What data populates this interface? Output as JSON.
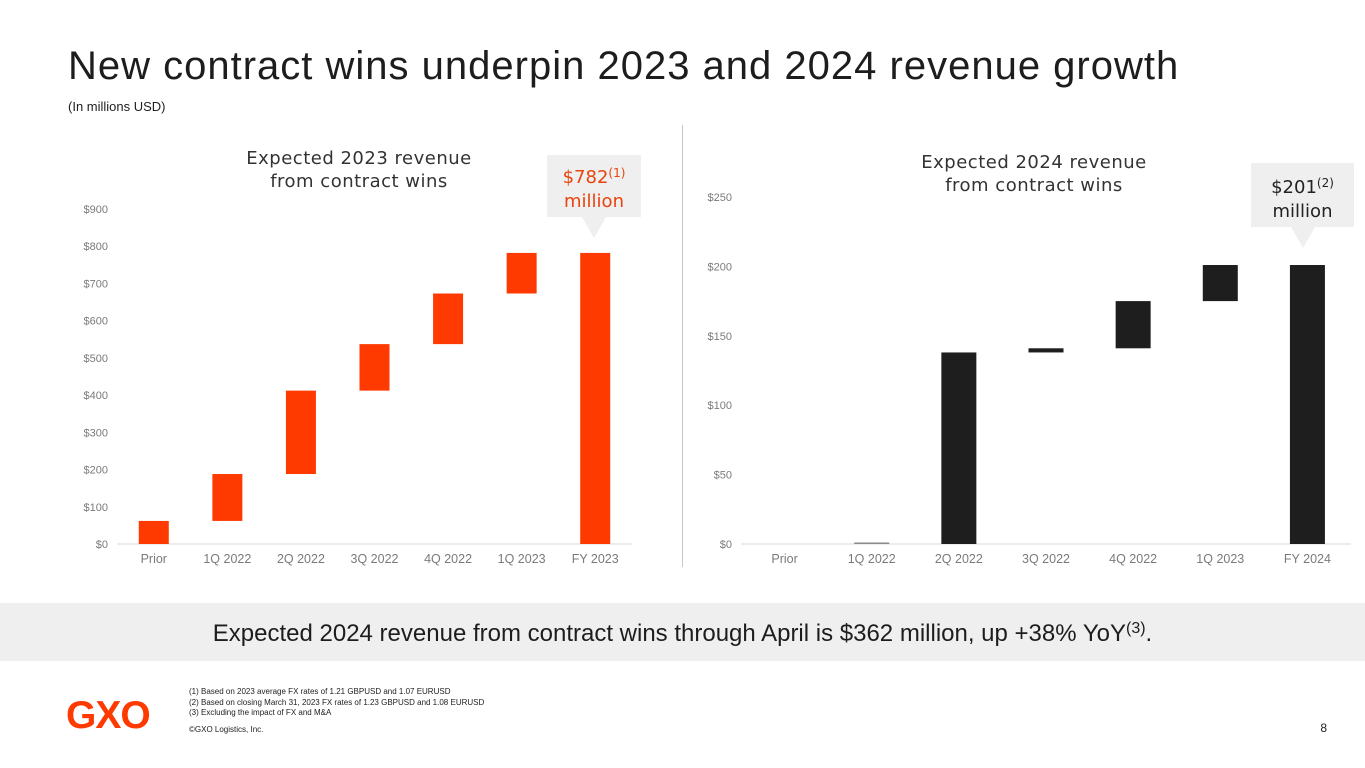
{
  "title": "New contract wins underpin 2023 and 2024 revenue growth",
  "subtitle": "(In millions USD)",
  "colors": {
    "accent": "#ff3a00",
    "dark": "#1e1e1e",
    "axis_text": "#7a7a7a",
    "callout_bg": "#efefef"
  },
  "chart_data": [
    {
      "type": "bar",
      "subtype": "waterfall",
      "title": "Expected 2023 revenue from contract wins",
      "categories": [
        "Prior",
        "1Q 2022",
        "2Q 2022",
        "3Q 2022",
        "4Q 2022",
        "1Q 2023",
        "FY 2023"
      ],
      "series": [
        {
          "name": "bar_bottom",
          "values": [
            0,
            62,
            188,
            412,
            537,
            673,
            0
          ]
        },
        {
          "name": "bar_top",
          "values": [
            62,
            188,
            412,
            537,
            673,
            782,
            782
          ]
        }
      ],
      "ylim": [
        0,
        900
      ],
      "yticks": [
        0,
        100,
        200,
        300,
        400,
        500,
        600,
        700,
        800,
        900
      ],
      "ytick_labels": [
        "$0",
        "$100",
        "$200",
        "$300",
        "$400",
        "$500",
        "$600",
        "$700",
        "$800",
        "$900"
      ],
      "xlabel": "",
      "ylabel": "",
      "color": "#ff3a00",
      "callout": {
        "value": "$782",
        "sup": "(1)",
        "unit": "million",
        "color": "#e8430f"
      }
    },
    {
      "type": "bar",
      "subtype": "waterfall",
      "title": "Expected 2024 revenue from contract wins",
      "categories": [
        "Prior",
        "1Q 2022",
        "2Q 2022",
        "3Q 2022",
        "4Q 2022",
        "1Q 2023",
        "FY 2024"
      ],
      "series": [
        {
          "name": "bar_bottom",
          "values": [
            0,
            0,
            0,
            138,
            141,
            175,
            0
          ]
        },
        {
          "name": "bar_top",
          "values": [
            0,
            1,
            138,
            141,
            175,
            201,
            201
          ]
        }
      ],
      "ylim": [
        0,
        250
      ],
      "yticks": [
        0,
        50,
        100,
        150,
        200,
        250
      ],
      "ytick_labels": [
        "$0",
        "$50",
        "$100",
        "$150",
        "$200",
        "$250"
      ],
      "xlabel": "",
      "ylabel": "",
      "color": "#1e1e1e",
      "callout": {
        "value": "$201",
        "sup": "(2)",
        "unit": "million",
        "color": "#222222"
      }
    }
  ],
  "banner": {
    "text": "Expected 2024 revenue from contract wins through April is $362 million, up +38% YoY",
    "sup": "(3)",
    "end": "."
  },
  "footnotes": [
    "(1) Based on 2023 average FX rates of 1.21 GBPUSD and 1.07 EURUSD",
    "(2) Based on closing March 31, 2023 FX rates of 1.23 GBPUSD and 1.08 EURUSD",
    "(3) Excluding the impact of FX and M&A"
  ],
  "copyright": "©GXO Logistics, Inc.",
  "logo_text": "GXO",
  "page_number": "8"
}
